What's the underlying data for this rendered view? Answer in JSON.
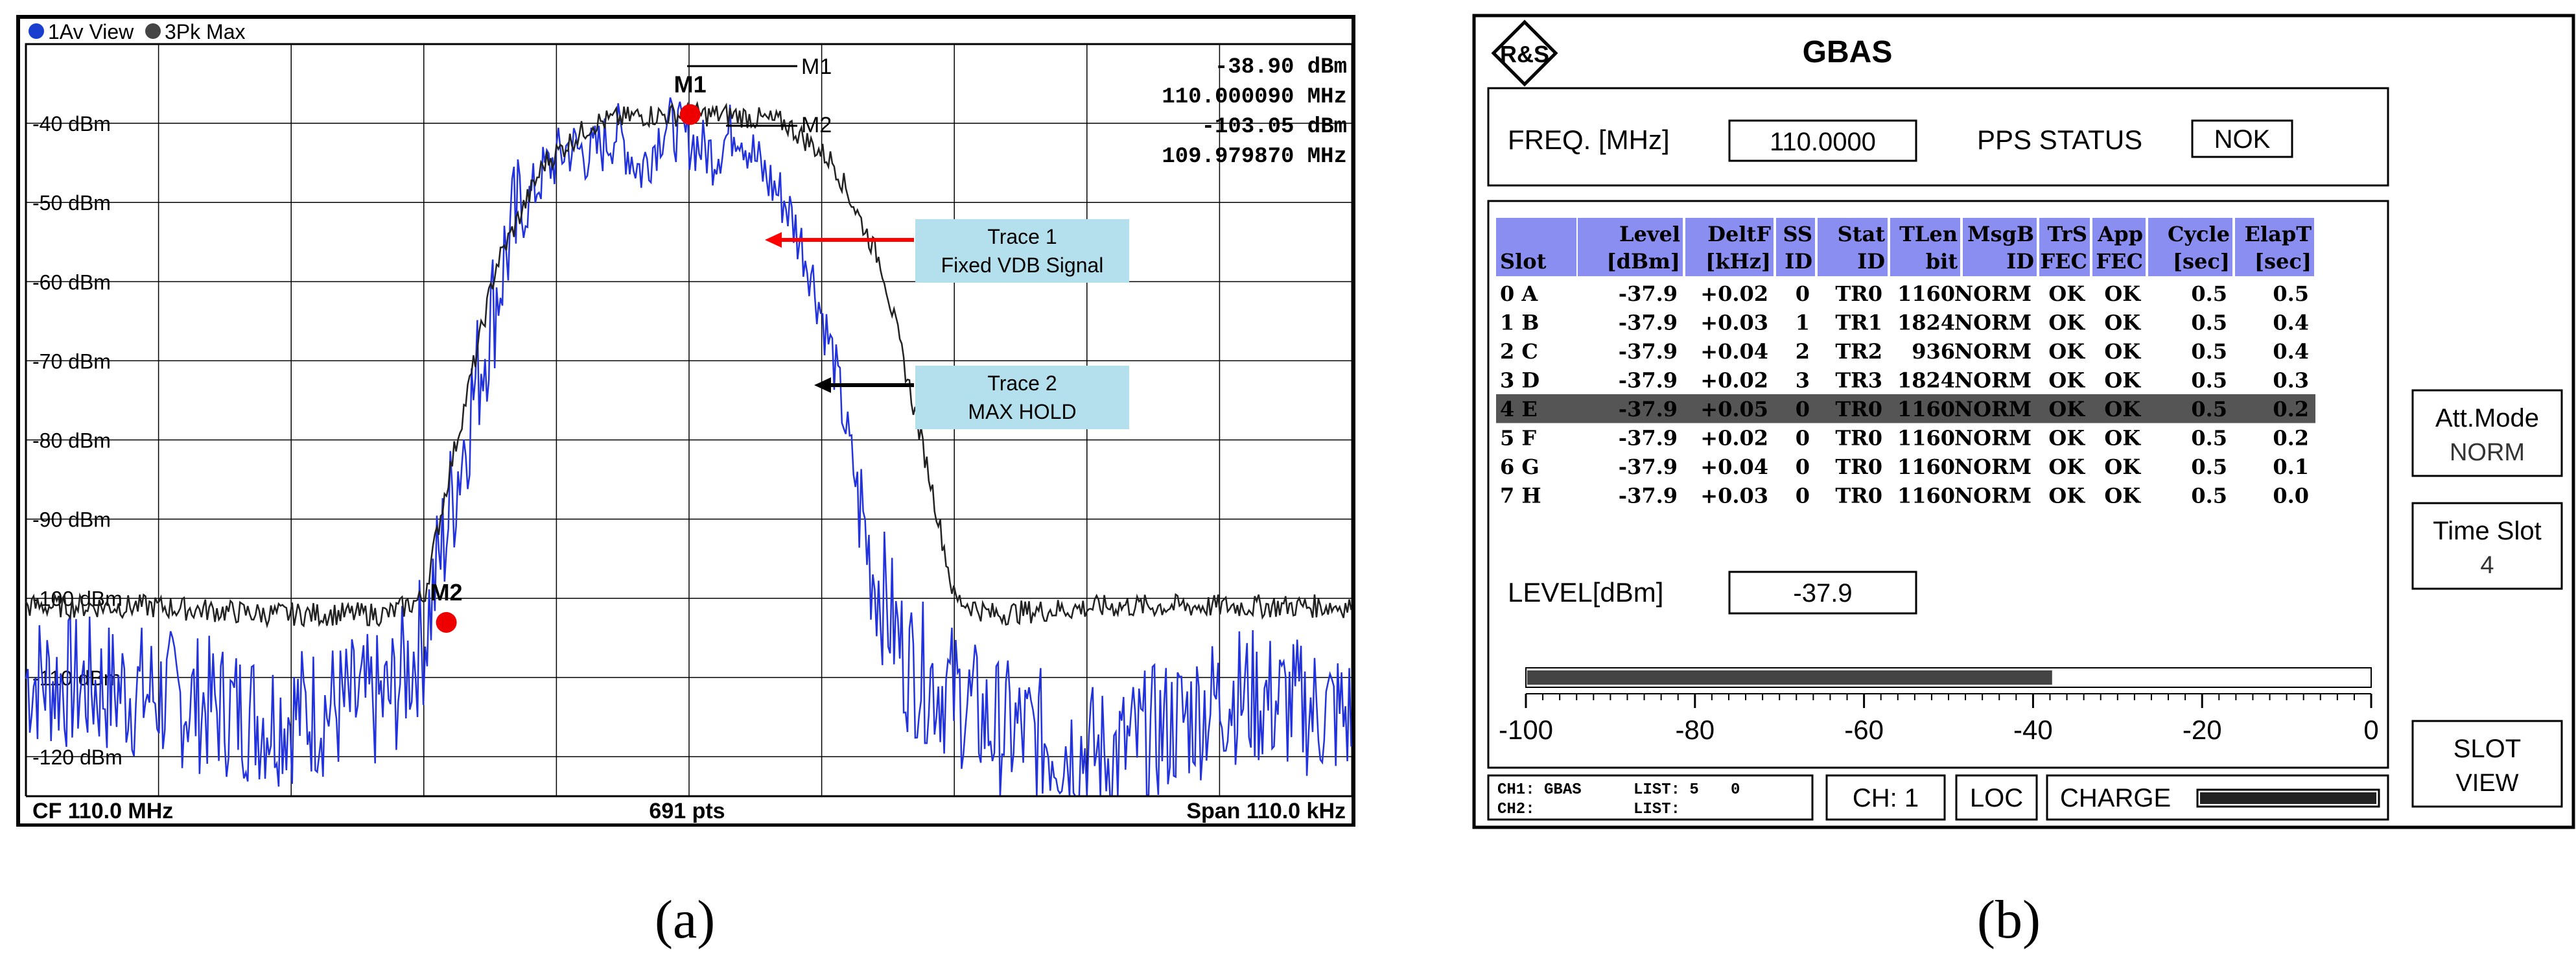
{
  "panel_a": {
    "trace_header": [
      "1Av View",
      "3Pk Max"
    ],
    "trace_header_colors": [
      "#1a3fcf",
      "#444444"
    ],
    "marker_legend": [
      "M1",
      "M2"
    ],
    "readouts": [
      "-38.90 dBm",
      "110.000090 MHz",
      "-103.05 dBm",
      "109.979870 MHz"
    ],
    "markers": [
      {
        "label": "M1",
        "freq_mhz": 110.00009,
        "level_dbm": -38.9
      },
      {
        "label": "M2",
        "freq_mhz": 109.97987,
        "level_dbm": -103.05
      }
    ],
    "y_ticks": [
      "-40 dBm",
      "-50 dBm",
      "-60 dBm",
      "-70 dBm",
      "-80 dBm",
      "-90 dBm",
      "-100 dBm",
      "-110 dBm",
      "-120 dBm"
    ],
    "footer": {
      "left": "CF 110.0 MHz",
      "center": "691 pts",
      "right": "Span 110.0 kHz"
    },
    "annotations": [
      {
        "lines": [
          "Trace 1",
          "Fixed VDB Signal"
        ],
        "arrow_color": "#ff0000"
      },
      {
        "lines": [
          "Trace 2",
          "MAX HOLD"
        ],
        "arrow_color": "#000000"
      }
    ],
    "colors": {
      "trace1": "#2233dd",
      "trace2": "#222222",
      "marker": "#ee0000",
      "annotation_bg": "#b3e0ec"
    },
    "chart_data": {
      "type": "line",
      "series": [
        {
          "name": "Trace 1",
          "x_mhz_offset_khz": [
            -55,
            -45,
            -35,
            -25,
            -22,
            -18,
            -15,
            -12,
            -10,
            -8,
            -6,
            -4,
            -2,
            0,
            2,
            4,
            6,
            8,
            10,
            12,
            15,
            18,
            22,
            25,
            35,
            45,
            55
          ],
          "values": [
            -110,
            -112,
            -115,
            -113,
            -105,
            -75,
            -55,
            -46,
            -43,
            -44,
            -41,
            -46,
            -40,
            -42,
            -44,
            -40,
            -46,
            -50,
            -58,
            -70,
            -95,
            -108,
            -112,
            -116,
            -120,
            -112,
            -115
          ]
        },
        {
          "name": "Trace 2",
          "x_mhz_offset_khz": [
            -55,
            -45,
            -35,
            -25,
            -22,
            -20,
            -16,
            -12,
            -8,
            -4,
            0,
            4,
            8,
            12,
            16,
            20,
            22,
            25,
            35,
            45,
            55
          ],
          "values": [
            -101,
            -101,
            -102,
            -102,
            -100,
            -85,
            -58,
            -45,
            -40,
            -39,
            -38.9,
            -39,
            -40,
            -45,
            -58,
            -85,
            -100,
            -102,
            -101,
            -101,
            -101
          ]
        }
      ],
      "ylim": [
        -125,
        -30
      ],
      "x_center_mhz": 110.0,
      "span_khz": 110.0
    }
  },
  "panel_b": {
    "title": "GBAS",
    "logo": "R&S",
    "freq_label": "FREQ. [MHz]",
    "freq_value": "110.0000",
    "pps_label": "PPS STATUS",
    "pps_value": "NOK",
    "table_headers_1": [
      "",
      "Level",
      "DeltF",
      "SS",
      "Stat",
      "TLen",
      "MsgB",
      "TrS",
      "App",
      "Cycle",
      "ElapT"
    ],
    "table_headers_2": [
      "Slot",
      "[dBm]",
      "[kHz]",
      "ID",
      "ID",
      "bit",
      "ID",
      "FEC",
      "FEC",
      "[sec]",
      "[sec]"
    ],
    "rows": [
      [
        "0  A",
        "-37.9",
        "+0.02",
        "0",
        "TR0",
        "1160",
        "NORM",
        "OK",
        "OK",
        "0.5",
        "0.5"
      ],
      [
        "1  B",
        "-37.9",
        "+0.03",
        "1",
        "TR1",
        "1824",
        "NORM",
        "OK",
        "OK",
        "0.5",
        "0.4"
      ],
      [
        "2  C",
        "-37.9",
        "+0.04",
        "2",
        "TR2",
        "936",
        "NORM",
        "OK",
        "OK",
        "0.5",
        "0.4"
      ],
      [
        "3  D",
        "-37.9",
        "+0.02",
        "3",
        "TR3",
        "1824",
        "NORM",
        "OK",
        "OK",
        "0.5",
        "0.3"
      ],
      [
        "4  E",
        "-37.9",
        "+0.05",
        "0",
        "TR0",
        "1160",
        "NORM",
        "OK",
        "OK",
        "0.5",
        "0.2"
      ],
      [
        "5  F",
        "-37.9",
        "+0.02",
        "0",
        "TR0",
        "1160",
        "NORM",
        "OK",
        "OK",
        "0.5",
        "0.2"
      ],
      [
        "6  G",
        "-37.9",
        "+0.04",
        "0",
        "TR0",
        "1160",
        "NORM",
        "OK",
        "OK",
        "0.5",
        "0.1"
      ],
      [
        "7  H",
        "-37.9",
        "+0.03",
        "0",
        "TR0",
        "1160",
        "NORM",
        "OK",
        "OK",
        "0.5",
        "0.0"
      ]
    ],
    "selected_row": 4,
    "level_label": "LEVEL[dBm]",
    "level_value": "-37.9",
    "bar_level_dbm": -37.9,
    "scale_labels": [
      "-100",
      "-80",
      "-60",
      "-40",
      "-20",
      "0"
    ],
    "softkeys": [
      {
        "line1": "Att.Mode",
        "line2": "NORM"
      },
      {
        "line1": "Time Slot",
        "line2": "4"
      },
      {
        "line1": "SLOT",
        "line2": "VIEW"
      }
    ],
    "status": {
      "ch1": "CH1: GBAS",
      "ch2": "CH2:",
      "list1": "LIST: 5",
      "list1_val": "0",
      "list2": "LIST:",
      "ch": "CH: 1",
      "loc": "LOC",
      "charge": "CHARGE"
    },
    "colors": {
      "header_bg": "#8a8ef0",
      "selected_bg": "#555555",
      "bar_fill": "#444444"
    }
  },
  "captions": {
    "a": "(a)",
    "b": "(b)"
  }
}
